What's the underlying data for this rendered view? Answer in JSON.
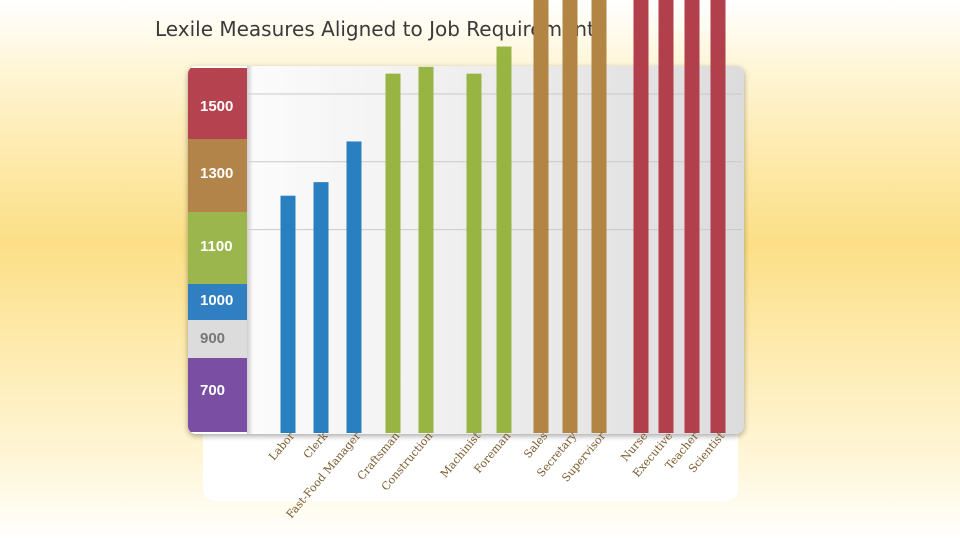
{
  "slide": {
    "title": "Lexile Measures Aligned to Job Requirements"
  },
  "colors": {
    "band_1500": "#b5434f",
    "band_1300": "#b2844a",
    "band_1100": "#9ab64d",
    "band_1000": "#2f7fc2",
    "band_900": "#dcdcdc",
    "band_700": "#7a4fa3",
    "bar_blue": "#2a7fc0",
    "bar_green": "#98b443",
    "bar_tan": "#b28544",
    "bar_red": "#b23f4c"
  },
  "bands": [
    {
      "label": "1500",
      "color": "band_1500",
      "text_color": "#ffffff"
    },
    {
      "label": "1300",
      "color": "band_1300",
      "text_color": "#ffffff"
    },
    {
      "label": "1100",
      "color": "band_1100",
      "text_color": "#ffffff"
    },
    {
      "label": "1000",
      "color": "band_1000",
      "text_color": "#ffffff"
    },
    {
      "label": "900",
      "color": "band_900",
      "text_color": "#777777"
    },
    {
      "label": "700",
      "color": "band_700",
      "text_color": "#ffffff"
    }
  ],
  "chart_data": {
    "type": "bar",
    "title": "",
    "xlabel": "",
    "ylabel": "",
    "ylim": [
      600,
      1550
    ],
    "grid": true,
    "groups": [
      {
        "color": "bar_blue",
        "categories": [
          "Labor",
          "Clerk",
          "Fast-Food Manager"
        ],
        "values": [
          950,
          970,
          1030
        ]
      },
      {
        "color": "bar_green",
        "categories": [
          "Craftsman",
          "Construction",
          "Machinist",
          "Foreman"
        ],
        "values": [
          1130,
          1140,
          1130,
          1170
        ]
      },
      {
        "color": "bar_tan",
        "categories": [
          "Sales",
          "Secretary",
          "Supervisor"
        ],
        "values": [
          1300,
          1370,
          1400
        ]
      },
      {
        "color": "bar_red",
        "categories": [
          "Nurse",
          "Executive",
          "Teacher",
          "Scientist"
        ],
        "values": [
          1390,
          1450,
          1510,
          1530
        ]
      }
    ]
  }
}
